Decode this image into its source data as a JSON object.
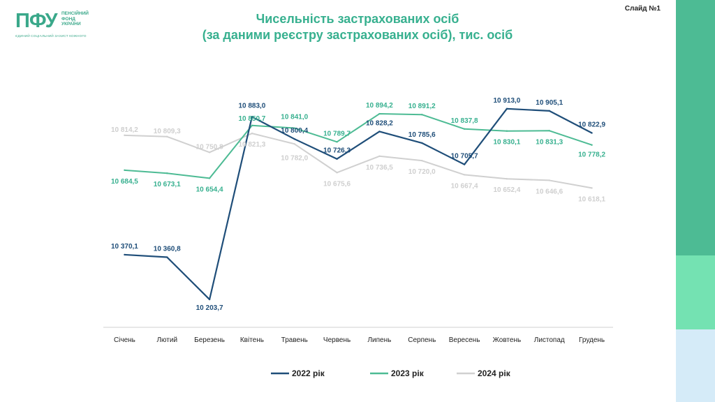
{
  "logo": {
    "mark": "ПФУ",
    "line1": "ПЕНСІЙНИЙ",
    "line2": "ФОНД",
    "line3": "УКРАЇНИ",
    "tagline": "ЄДИНИЙ СОЦІАЛЬНИЙ ЗАХИСТ КОЖНОГО"
  },
  "title_line1": "Чисельність застрахованих осіб",
  "title_line2": "(за даними реєстру застрахованих осіб), тис. осіб",
  "slide_label": "Слайд №1",
  "colors": {
    "accent": "#37b08f",
    "stripe_top": "#4dbb94",
    "stripe_mid": "#74e2b2",
    "stripe_bottom": "#d5ebf8"
  },
  "chart_data": {
    "type": "line",
    "title": "Чисельність застрахованих осіб (за даними реєстру застрахованих осіб), тис. осіб",
    "categories": [
      "Січень",
      "Лютий",
      "Березень",
      "Квітень",
      "Травень",
      "Червень",
      "Липень",
      "Серпень",
      "Вересень",
      "Жовтень",
      "Листопад",
      "Грудень"
    ],
    "ylim": [
      10100,
      10980
    ],
    "grid": false,
    "legend_position": "bottom",
    "series": [
      {
        "name": "2022 рік",
        "color": "#1f4e79",
        "values": [
          10370.1,
          10360.8,
          10203.7,
          10883.0,
          10800.4,
          10726.3,
          10828.2,
          10785.6,
          10705.7,
          10913.0,
          10905.1,
          10822.9
        ],
        "labels": [
          "10 370,1",
          "10 360,8",
          "10 203,7",
          "10 883,0",
          "10 800,4",
          "10 726,3",
          "10 828,2",
          "10 785,6",
          "10 705,7",
          "10 913,0",
          "10 905,1",
          "10 822,9"
        ]
      },
      {
        "name": "2023 рік",
        "color": "#4dbb94",
        "values": [
          10684.5,
          10673.1,
          10654.4,
          10850.7,
          10841.0,
          10789.7,
          10894.2,
          10891.2,
          10837.8,
          10830.1,
          10831.3,
          10778.2
        ],
        "labels": [
          "10 684,5",
          "10 673,1",
          "10 654,4",
          "10 850,7",
          "10 841,0",
          "10 789,7",
          "10 894,2",
          "10 891,2",
          "10 837,8",
          "10 830,1",
          "10 831,3",
          "10 778,2"
        ]
      },
      {
        "name": "2024 рік",
        "color": "#d0d0d0",
        "values": [
          10814.2,
          10809.3,
          10750.8,
          10821.3,
          10782.0,
          10675.6,
          10736.5,
          10720.0,
          10667.4,
          10652.4,
          10646.6,
          10618.1
        ],
        "labels": [
          "10 814,2",
          "10 809,3",
          "10 750,8",
          "10 821,3",
          "10 782,0",
          "10 675,6",
          "10 736,5",
          "10 720,0",
          "10 667,4",
          "10 652,4",
          "10 646,6",
          "10 618,1"
        ]
      }
    ]
  }
}
